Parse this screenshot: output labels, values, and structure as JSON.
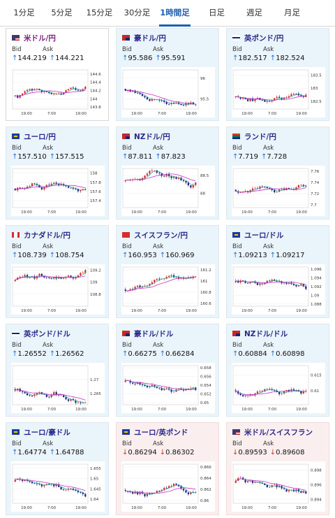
{
  "tabs": [
    {
      "label": "1分足",
      "active": false
    },
    {
      "label": "5分足",
      "active": false
    },
    {
      "label": "15分足",
      "active": false
    },
    {
      "label": "30分足",
      "active": false
    },
    {
      "label": "1時間足",
      "active": true
    },
    {
      "label": "日足",
      "active": false
    },
    {
      "label": "週足",
      "active": false
    },
    {
      "label": "月足",
      "active": false
    }
  ],
  "labels": {
    "bid": "Bid",
    "ask": "Ask"
  },
  "colors": {
    "up": "#1976d2",
    "down": "#d32f2f",
    "candle_up": "#d32f2f",
    "candle_down": "#1a237e",
    "ma_short": "#26a69a",
    "ma_long": "#c62fc6"
  },
  "pairs": [
    {
      "name": "米ドル/円",
      "flag": "us",
      "direction": "up",
      "bid": "144.219",
      "ask": "144.221",
      "highlight": "white",
      "chart": {
        "y_ticks": [
          "144.6",
          "144.4",
          "144.2",
          "144",
          "143.8"
        ],
        "x_ticks": [
          "19:00",
          "7:00",
          "19:00"
        ],
        "ylim": [
          143.75,
          144.7
        ]
      }
    },
    {
      "name": "豪ドル/円",
      "flag": "au",
      "direction": "up",
      "bid": "95.586",
      "ask": "95.591",
      "highlight": "",
      "chart": {
        "y_ticks": [
          "96",
          "95.5"
        ],
        "x_ticks": [
          "19:00",
          "7:00",
          "19:00"
        ],
        "ylim": [
          95.25,
          96.2
        ]
      }
    },
    {
      "name": "英ポンド/円",
      "flag": "gb",
      "direction": "up",
      "bid": "182.517",
      "ask": "182.524",
      "highlight": "",
      "chart": {
        "y_ticks": [
          "183.5",
          "183",
          "182.5"
        ],
        "x_ticks": [
          "19:00",
          "7:00",
          "19:00"
        ],
        "ylim": [
          182.2,
          183.7
        ]
      }
    },
    {
      "name": "ユーロ/円",
      "flag": "eu",
      "direction": "up",
      "bid": "157.510",
      "ask": "157.515",
      "highlight": "",
      "chart": {
        "y_ticks": [
          "158",
          "157.8",
          "157.6",
          "157.4"
        ],
        "x_ticks": [
          "19:00",
          "7:00",
          "19:00"
        ],
        "ylim": [
          157.25,
          158.1
        ]
      }
    },
    {
      "name": "NZドル/円",
      "flag": "nz",
      "direction": "up",
      "bid": "87.811",
      "ask": "87.823",
      "highlight": "",
      "chart": {
        "y_ticks": [
          "88.5",
          "88"
        ],
        "x_ticks": [
          "19:00",
          "7:00",
          "19:00"
        ],
        "ylim": [
          87.6,
          88.7
        ]
      }
    },
    {
      "name": "ランド/円",
      "flag": "za",
      "direction": "up",
      "bid": "7.719",
      "ask": "7.728",
      "highlight": "",
      "chart": {
        "y_ticks": [
          "7.76",
          "7.74",
          "7.72",
          "7.7"
        ],
        "x_ticks": [
          "19:00",
          "7:00",
          "19:00"
        ],
        "ylim": [
          7.695,
          7.765
        ]
      }
    },
    {
      "name": "カナダドル/円",
      "flag": "ca",
      "direction": "up",
      "bid": "108.739",
      "ask": "108.754",
      "highlight": "",
      "chart": {
        "y_ticks": [
          "109.2",
          "109",
          "108.8"
        ],
        "x_ticks": [
          "19:00",
          "7:00",
          "19:00"
        ],
        "ylim": [
          108.6,
          109.25
        ]
      }
    },
    {
      "name": "スイスフラン/円",
      "flag": "ch",
      "direction": "up",
      "bid": "160.953",
      "ask": "160.969",
      "highlight": "",
      "chart": {
        "y_ticks": [
          "161.2",
          "161",
          "160.8",
          "160.6"
        ],
        "x_ticks": [
          "19:00",
          "7:00",
          "19:00"
        ],
        "ylim": [
          160.55,
          161.25
        ]
      }
    },
    {
      "name": "ユーロ/ドル",
      "flag": "eu2",
      "direction": "up",
      "bid": "1.09213",
      "ask": "1.09217",
      "highlight": "",
      "chart": {
        "y_ticks": [
          "1.096",
          "1.094",
          "1.092",
          "1.09",
          "1.088"
        ],
        "x_ticks": [
          "19:00",
          "7:00",
          "19:00"
        ],
        "ylim": [
          1.0875,
          1.0965
        ]
      }
    },
    {
      "name": "英ポンド/ドル",
      "flag": "gb2",
      "direction": "up",
      "bid": "1.26552",
      "ask": "1.26562",
      "highlight": "",
      "chart": {
        "y_ticks": [
          "1.27",
          "1.265"
        ],
        "x_ticks": [
          "19:00",
          "7:00",
          "19:00"
        ],
        "ylim": [
          1.261,
          1.275
        ]
      }
    },
    {
      "name": "豪ドル/ドル",
      "flag": "au2",
      "direction": "up",
      "bid": "0.66275",
      "ask": "0.66284",
      "highlight": "",
      "chart": {
        "y_ticks": [
          "0.658",
          "0.656",
          "0.654",
          "0.652",
          "0.65"
        ],
        "x_ticks": [
          "19:00",
          "7:00",
          "19:00"
        ],
        "ylim": [
          0.6495,
          0.6585
        ]
      }
    },
    {
      "name": "NZドル/ドル",
      "flag": "nz2",
      "direction": "up",
      "bid": "0.60884",
      "ask": "0.60898",
      "highlight": "",
      "chart": {
        "y_ticks": [
          "0.615",
          "0.61"
        ],
        "x_ticks": [
          "19:00",
          "7:00",
          "19:00"
        ],
        "ylim": [
          0.6055,
          0.618
        ]
      }
    },
    {
      "name": "ユーロ/豪ドル",
      "flag": "eu3",
      "direction": "up",
      "bid": "1.64774",
      "ask": "1.64788",
      "highlight": "",
      "chart": {
        "y_ticks": [
          "1.655",
          "1.65",
          "1.645",
          "1.64"
        ],
        "x_ticks": [
          "19:00",
          "7:00",
          "19:00"
        ],
        "ylim": [
          1.638,
          1.657
        ]
      }
    },
    {
      "name": "ユーロ/英ポンド",
      "flag": "eu4",
      "direction": "down",
      "bid": "0.86294",
      "ask": "0.86302",
      "highlight": "",
      "chart": {
        "y_ticks": [
          "0.866",
          "0.864",
          "0.862",
          "0.86"
        ],
        "x_ticks": [
          "19:00",
          "7:00",
          "19:00"
        ],
        "ylim": [
          0.8595,
          0.8665
        ]
      }
    },
    {
      "name": "米ドル/スイスフラン",
      "flag": "us2",
      "direction": "down",
      "bid": "0.89593",
      "ask": "0.89608",
      "highlight": "",
      "chart": {
        "y_ticks": [
          "0.898",
          "0.896",
          "0.894"
        ],
        "x_ticks": [
          "19:00",
          "7:00",
          "19:00"
        ],
        "ylim": [
          0.8935,
          0.8988
        ]
      }
    }
  ]
}
